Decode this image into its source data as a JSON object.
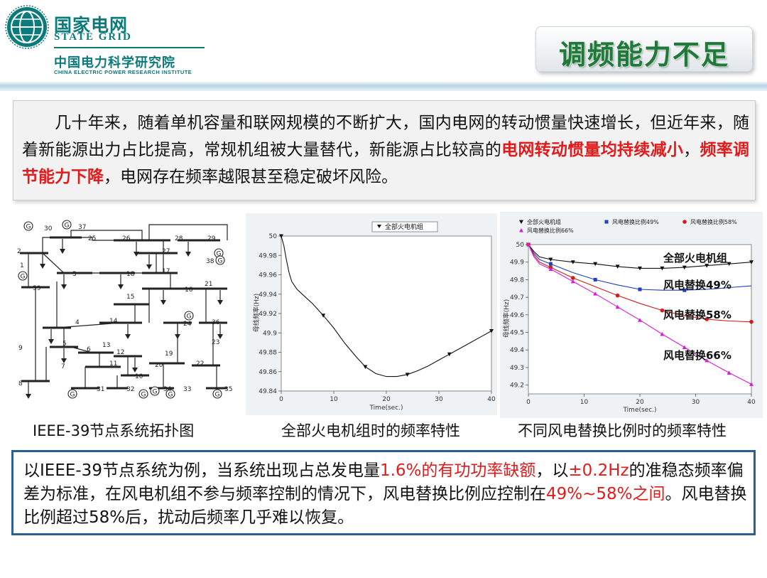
{
  "header": {
    "org_cn": "国家电网",
    "org_en": "STATE GRID",
    "institute_cn": "中国电力科学研究院",
    "institute_en": "CHINA ELECTRIC POWER RESEARCH INSTITUTE",
    "title": "调频能力不足"
  },
  "intro": {
    "part1": "几十年来，随着单机容量和联网规模的不断扩大，国内电网的转动惯量快速增长，但近年来，随着新能源出力占比提高，常规机组被大量替代，新能源占比较高的",
    "highlight1": "电网转动惯量均持续减小",
    "part2": "，",
    "highlight2": "频率调节能力下降",
    "part3": "，电网存在频率越限甚至稳定破坏风险。"
  },
  "captions": {
    "topology": "IEEE-39节点系统拓扑图",
    "chart_thermal": "全部火电机组时的频率特性",
    "chart_wind": "不同风电替换比例时的频率特性"
  },
  "conclusion": {
    "part1": "以IEEE-39节点系统为例，当系统出现占总发电量",
    "highlight1": "1.6%的有功功率缺额",
    "part2": "，以",
    "highlight2": "±0.2Hz",
    "part3": "的准稳态频率偏差为标准，在风电机组不参与频率控制的情况下，风电替换比例应控制在",
    "highlight3": "49%~58%之间",
    "part4": "。风电替换比例超过58%后，扰动后频率几乎难以恢复。"
  },
  "topology": {
    "generator_symbol": "G",
    "bus_labels": [
      "30",
      "37",
      "25",
      "26",
      "28",
      "29",
      "2",
      "1",
      "39",
      "3",
      "18",
      "27",
      "38",
      "17",
      "16",
      "21",
      "15",
      "4",
      "14",
      "24",
      "36",
      "5",
      "13",
      "12",
      "6",
      "11",
      "7",
      "9",
      "8",
      "19",
      "20",
      "22",
      "23",
      "10",
      "31",
      "32",
      "34",
      "33",
      "35"
    ]
  },
  "chart_data": [
    {
      "type": "line",
      "title": "",
      "legend": [
        "全部火电机组"
      ],
      "xlabel": "Time(sec.)",
      "ylabel": "母线频率(Hz)",
      "xlim": [
        0,
        40
      ],
      "ylim": [
        49.84,
        50.0
      ],
      "xticks": [
        "0",
        "10",
        "20",
        "30",
        "40"
      ],
      "yticks": [
        "50",
        "49.98",
        "49.96",
        "49.94",
        "49.92",
        "49.9",
        "49.88",
        "49.86",
        "49.84"
      ],
      "series": [
        {
          "name": "全部火电机组",
          "color": "#111111",
          "x": [
            0,
            0.5,
            1,
            1.5,
            2,
            3,
            4,
            6,
            8,
            10,
            12,
            14,
            16,
            18,
            20,
            22,
            24,
            26,
            28,
            30,
            32,
            34,
            36,
            38,
            40
          ],
          "y": [
            50.0,
            49.99,
            49.975,
            49.962,
            49.953,
            49.945,
            49.94,
            49.93,
            49.918,
            49.905,
            49.89,
            49.877,
            49.865,
            49.858,
            49.855,
            49.855,
            49.857,
            49.861,
            49.866,
            49.872,
            49.878,
            49.884,
            49.89,
            49.896,
            49.902
          ],
          "markers_x": [
            0,
            8,
            16,
            24,
            32,
            40
          ]
        }
      ]
    },
    {
      "type": "line",
      "title": "",
      "xlabel": "Time(sec.)",
      "ylabel": "母线频率(Hz)",
      "xlim": [
        0,
        40
      ],
      "ylim": [
        49.15,
        50.0
      ],
      "xticks": [
        "0",
        "10",
        "20",
        "30",
        "40"
      ],
      "yticks": [
        "50",
        "49.9",
        "49.8",
        "49.7",
        "49.6",
        "49.5",
        "49.4",
        "49.3",
        "49.2"
      ],
      "legend": [
        "全部火电机组",
        "风电替换比例49%",
        "风电替换比例58%",
        "风电替换比例66%"
      ],
      "annotations": [
        "全部火电机组",
        "风电替换49%",
        "风电替换58%",
        "风电替换66%"
      ],
      "series": [
        {
          "name": "全部火电机组",
          "color": "#111111",
          "marker": "triangle-down",
          "x": [
            0,
            1,
            2,
            4,
            8,
            12,
            16,
            20,
            24,
            28,
            32,
            36,
            40
          ],
          "y": [
            50.0,
            49.96,
            49.93,
            49.915,
            49.9,
            49.89,
            49.875,
            49.865,
            49.865,
            49.87,
            49.88,
            49.89,
            49.9
          ],
          "markers_x": [
            0,
            4,
            8,
            12,
            16,
            20,
            24,
            28,
            32,
            36,
            40
          ]
        },
        {
          "name": "风电替换比例49%",
          "color": "#1f3fbf",
          "marker": "square",
          "x": [
            0,
            1,
            2,
            4,
            8,
            12,
            16,
            20,
            24,
            28,
            32,
            36,
            40
          ],
          "y": [
            50.0,
            49.95,
            49.915,
            49.89,
            49.84,
            49.8,
            49.77,
            49.745,
            49.74,
            49.74,
            49.745,
            49.755,
            49.765
          ],
          "markers_x": [
            0,
            4,
            12,
            20,
            28
          ]
        },
        {
          "name": "风电替换比例58%",
          "color": "#d41b1b",
          "marker": "circle",
          "x": [
            0,
            1,
            2,
            4,
            8,
            12,
            16,
            20,
            24,
            28,
            32,
            36,
            40
          ],
          "y": [
            50.0,
            49.94,
            49.9,
            49.87,
            49.81,
            49.76,
            49.71,
            49.665,
            49.625,
            49.595,
            49.575,
            49.565,
            49.56
          ],
          "markers_x": [
            0,
            4,
            8,
            16,
            24,
            32,
            40
          ]
        },
        {
          "name": "风电替换比例66%",
          "color": "#d81bd8",
          "marker": "triangle-up",
          "x": [
            0,
            1,
            2,
            4,
            8,
            12,
            16,
            20,
            24,
            28,
            32,
            36,
            40
          ],
          "y": [
            50.0,
            49.93,
            49.89,
            49.86,
            49.79,
            49.72,
            49.645,
            49.57,
            49.49,
            49.415,
            49.34,
            49.27,
            49.205
          ],
          "markers_x": [
            0,
            4,
            8,
            12,
            16,
            20,
            24,
            28,
            32,
            36,
            40
          ]
        }
      ]
    }
  ],
  "colors": {
    "brand_teal": "#0b7a7b",
    "title_green": "#1f7a3a",
    "highlight_red": "#e11b1b",
    "box_border": "#2c5f93"
  }
}
